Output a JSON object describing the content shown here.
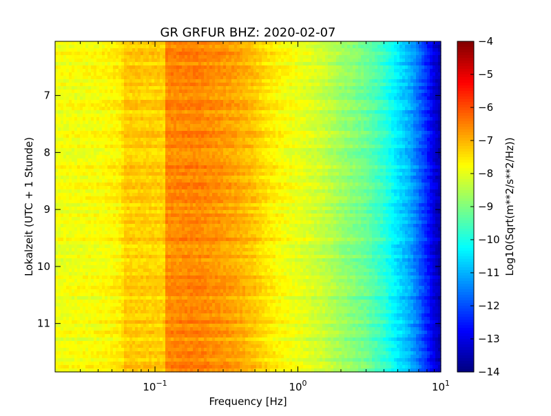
{
  "chart_data": {
    "type": "heatmap",
    "title": "GR GRFUR BHZ: 2020-02-07",
    "xlabel": "Frequency [Hz]",
    "ylabel": "Lokalzeit (UTC + 1 Stunde)",
    "colorbar_label": "Log10(Sqrt(m**2/s**2/Hz))",
    "x_scale": "log",
    "xlim": [
      0.02,
      10
    ],
    "ylim": [
      11.85,
      6.05
    ],
    "y_inverted": true,
    "colormap": "jet",
    "clim": [
      -14,
      -4
    ],
    "x_ticks": [
      {
        "value": 0.1,
        "base": "10",
        "exp": "−1"
      },
      {
        "value": 1,
        "base": "10",
        "exp": "0"
      },
      {
        "value": 10,
        "base": "10",
        "exp": "1"
      }
    ],
    "y_ticks": [
      "7",
      "8",
      "9",
      "10",
      "11"
    ],
    "colorbar_ticks": [
      "−4",
      "−5",
      "−6",
      "−7",
      "−8",
      "−9",
      "−10",
      "−11",
      "−12",
      "−13",
      "−14"
    ],
    "spectrum_profile": {
      "frequencies_hz": [
        0.02,
        0.04,
        0.059,
        0.06,
        0.118,
        0.12,
        0.2,
        0.3,
        0.4,
        0.5,
        0.6,
        0.8,
        1.0,
        1.5,
        2.0,
        3.0,
        4.0,
        5.0,
        6.0,
        7.0,
        8.0,
        9.0,
        10.0
      ],
      "log10_amplitude": [
        -7.9,
        -7.8,
        -7.6,
        -7.25,
        -7.3,
        -6.6,
        -6.55,
        -6.75,
        -6.95,
        -7.2,
        -7.5,
        -7.8,
        -7.95,
        -8.3,
        -8.7,
        -9.2,
        -9.8,
        -10.5,
        -11.0,
        -11.7,
        -12.4,
        -13.1,
        -13.6
      ]
    }
  }
}
